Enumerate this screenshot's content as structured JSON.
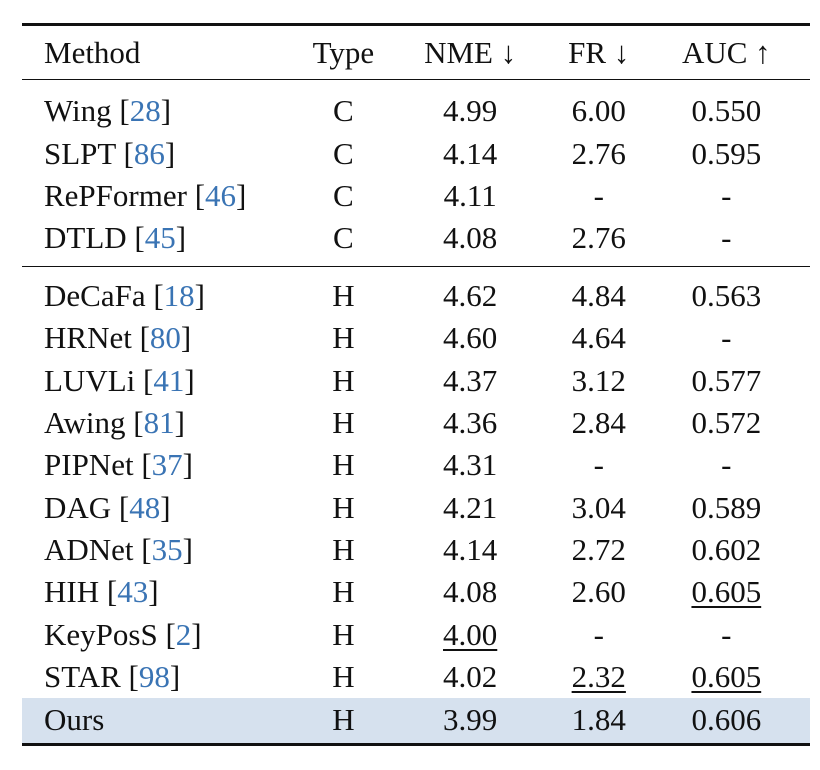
{
  "header": {
    "method": "Method",
    "type": "Type",
    "nme": "NME ↓",
    "fr": "FR ↓",
    "auc": "AUC ↑"
  },
  "group_c": [
    {
      "method": "Wing",
      "ref": "28",
      "type": "C",
      "nme": "4.99",
      "fr": "6.00",
      "auc": "0.550"
    },
    {
      "method": "SLPT",
      "ref": "86",
      "type": "C",
      "nme": "4.14",
      "fr": "2.76",
      "auc": "0.595"
    },
    {
      "method": "RePFormer",
      "ref": "46",
      "type": "C",
      "nme": "4.11",
      "fr": "-",
      "auc": "-"
    },
    {
      "method": "DTLD",
      "ref": "45",
      "type": "C",
      "nme": "4.08",
      "fr": "2.76",
      "auc": "-"
    }
  ],
  "group_h": [
    {
      "method": "DeCaFa",
      "ref": "18",
      "type": "H",
      "nme": "4.62",
      "fr": "4.84",
      "auc": "0.563"
    },
    {
      "method": "HRNet",
      "ref": "80",
      "type": "H",
      "nme": "4.60",
      "fr": "4.64",
      "auc": "-"
    },
    {
      "method": "LUVLi",
      "ref": "41",
      "type": "H",
      "nme": "4.37",
      "fr": "3.12",
      "auc": "0.577"
    },
    {
      "method": "Awing",
      "ref": "81",
      "type": "H",
      "nme": "4.36",
      "fr": "2.84",
      "auc": "0.572"
    },
    {
      "method": "PIPNet",
      "ref": "37",
      "type": "H",
      "nme": "4.31",
      "fr": "-",
      "auc": "-"
    },
    {
      "method": "DAG",
      "ref": "48",
      "type": "H",
      "nme": "4.21",
      "fr": "3.04",
      "auc": "0.589"
    },
    {
      "method": "ADNet",
      "ref": "35",
      "type": "H",
      "nme": "4.14",
      "fr": "2.72",
      "auc": "0.602"
    },
    {
      "method": "HIH",
      "ref": "43",
      "type": "H",
      "nme": "4.08",
      "fr": "2.60",
      "auc": "0.605"
    },
    {
      "method": "KeyPosS",
      "ref": "2",
      "type": "H",
      "nme": "4.00",
      "fr": "-",
      "auc": "-"
    },
    {
      "method": "STAR",
      "ref": "98",
      "type": "H",
      "nme": "4.02",
      "fr": "2.32",
      "auc": "0.605"
    },
    {
      "method": "Ours",
      "ref": "",
      "type": "H",
      "nme": "3.99",
      "fr": "1.84",
      "auc": "0.606"
    }
  ],
  "styles": {
    "ref_color": "#3a74b4",
    "highlight_row_color": "#d6e1ee",
    "underlined_cells": [
      "HIH.auc",
      "KeyPosS.nme",
      "STAR.fr",
      "STAR.auc"
    ],
    "bold_cells": [
      "Ours.nme",
      "Ours.fr",
      "Ours.auc"
    ]
  }
}
